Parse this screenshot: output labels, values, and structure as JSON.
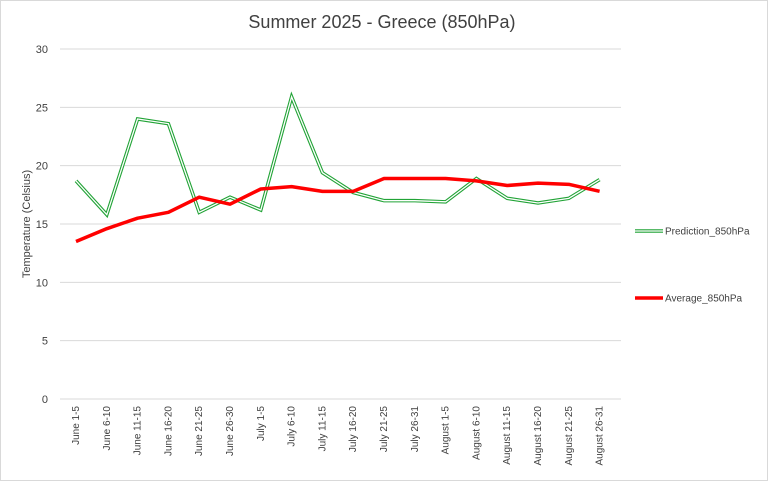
{
  "chart_data": {
    "type": "line",
    "title": "Summer 2025 - Greece (850hPa)",
    "xlabel": "",
    "ylabel": "Temperature  (Celsius)",
    "ylim": [
      0,
      30
    ],
    "yticks": [
      0,
      5,
      10,
      15,
      20,
      25,
      30
    ],
    "grid": true,
    "legend_position": "right",
    "categories": [
      "June 1-5",
      "June 6-10",
      "June 11-15",
      "June 16-20",
      "June 21-25",
      "June 26-30",
      "July 1-5",
      "July 6-10",
      "July 11-15",
      "July 16-20",
      "July 21-25",
      "July 26-31",
      "August 1-5",
      "August 6-10",
      "August 11-15",
      "August 16-20",
      "August 21-25",
      "August 26-31"
    ],
    "series": [
      {
        "name": "Prediction_850hPa",
        "color": "#21a336",
        "style": "double",
        "values": [
          18.7,
          15.8,
          24.0,
          23.6,
          16.0,
          17.3,
          16.2,
          25.9,
          19.4,
          17.7,
          17.0,
          17.0,
          16.9,
          18.9,
          17.2,
          16.8,
          17.2,
          18.8
        ]
      },
      {
        "name": "Average_850hPa",
        "color": "#ff0000",
        "style": "thick",
        "values": [
          13.5,
          14.6,
          15.5,
          16.0,
          17.3,
          16.7,
          18.0,
          18.2,
          17.8,
          17.8,
          18.9,
          18.9,
          18.9,
          18.7,
          18.3,
          18.5,
          18.4,
          17.8
        ]
      }
    ]
  }
}
